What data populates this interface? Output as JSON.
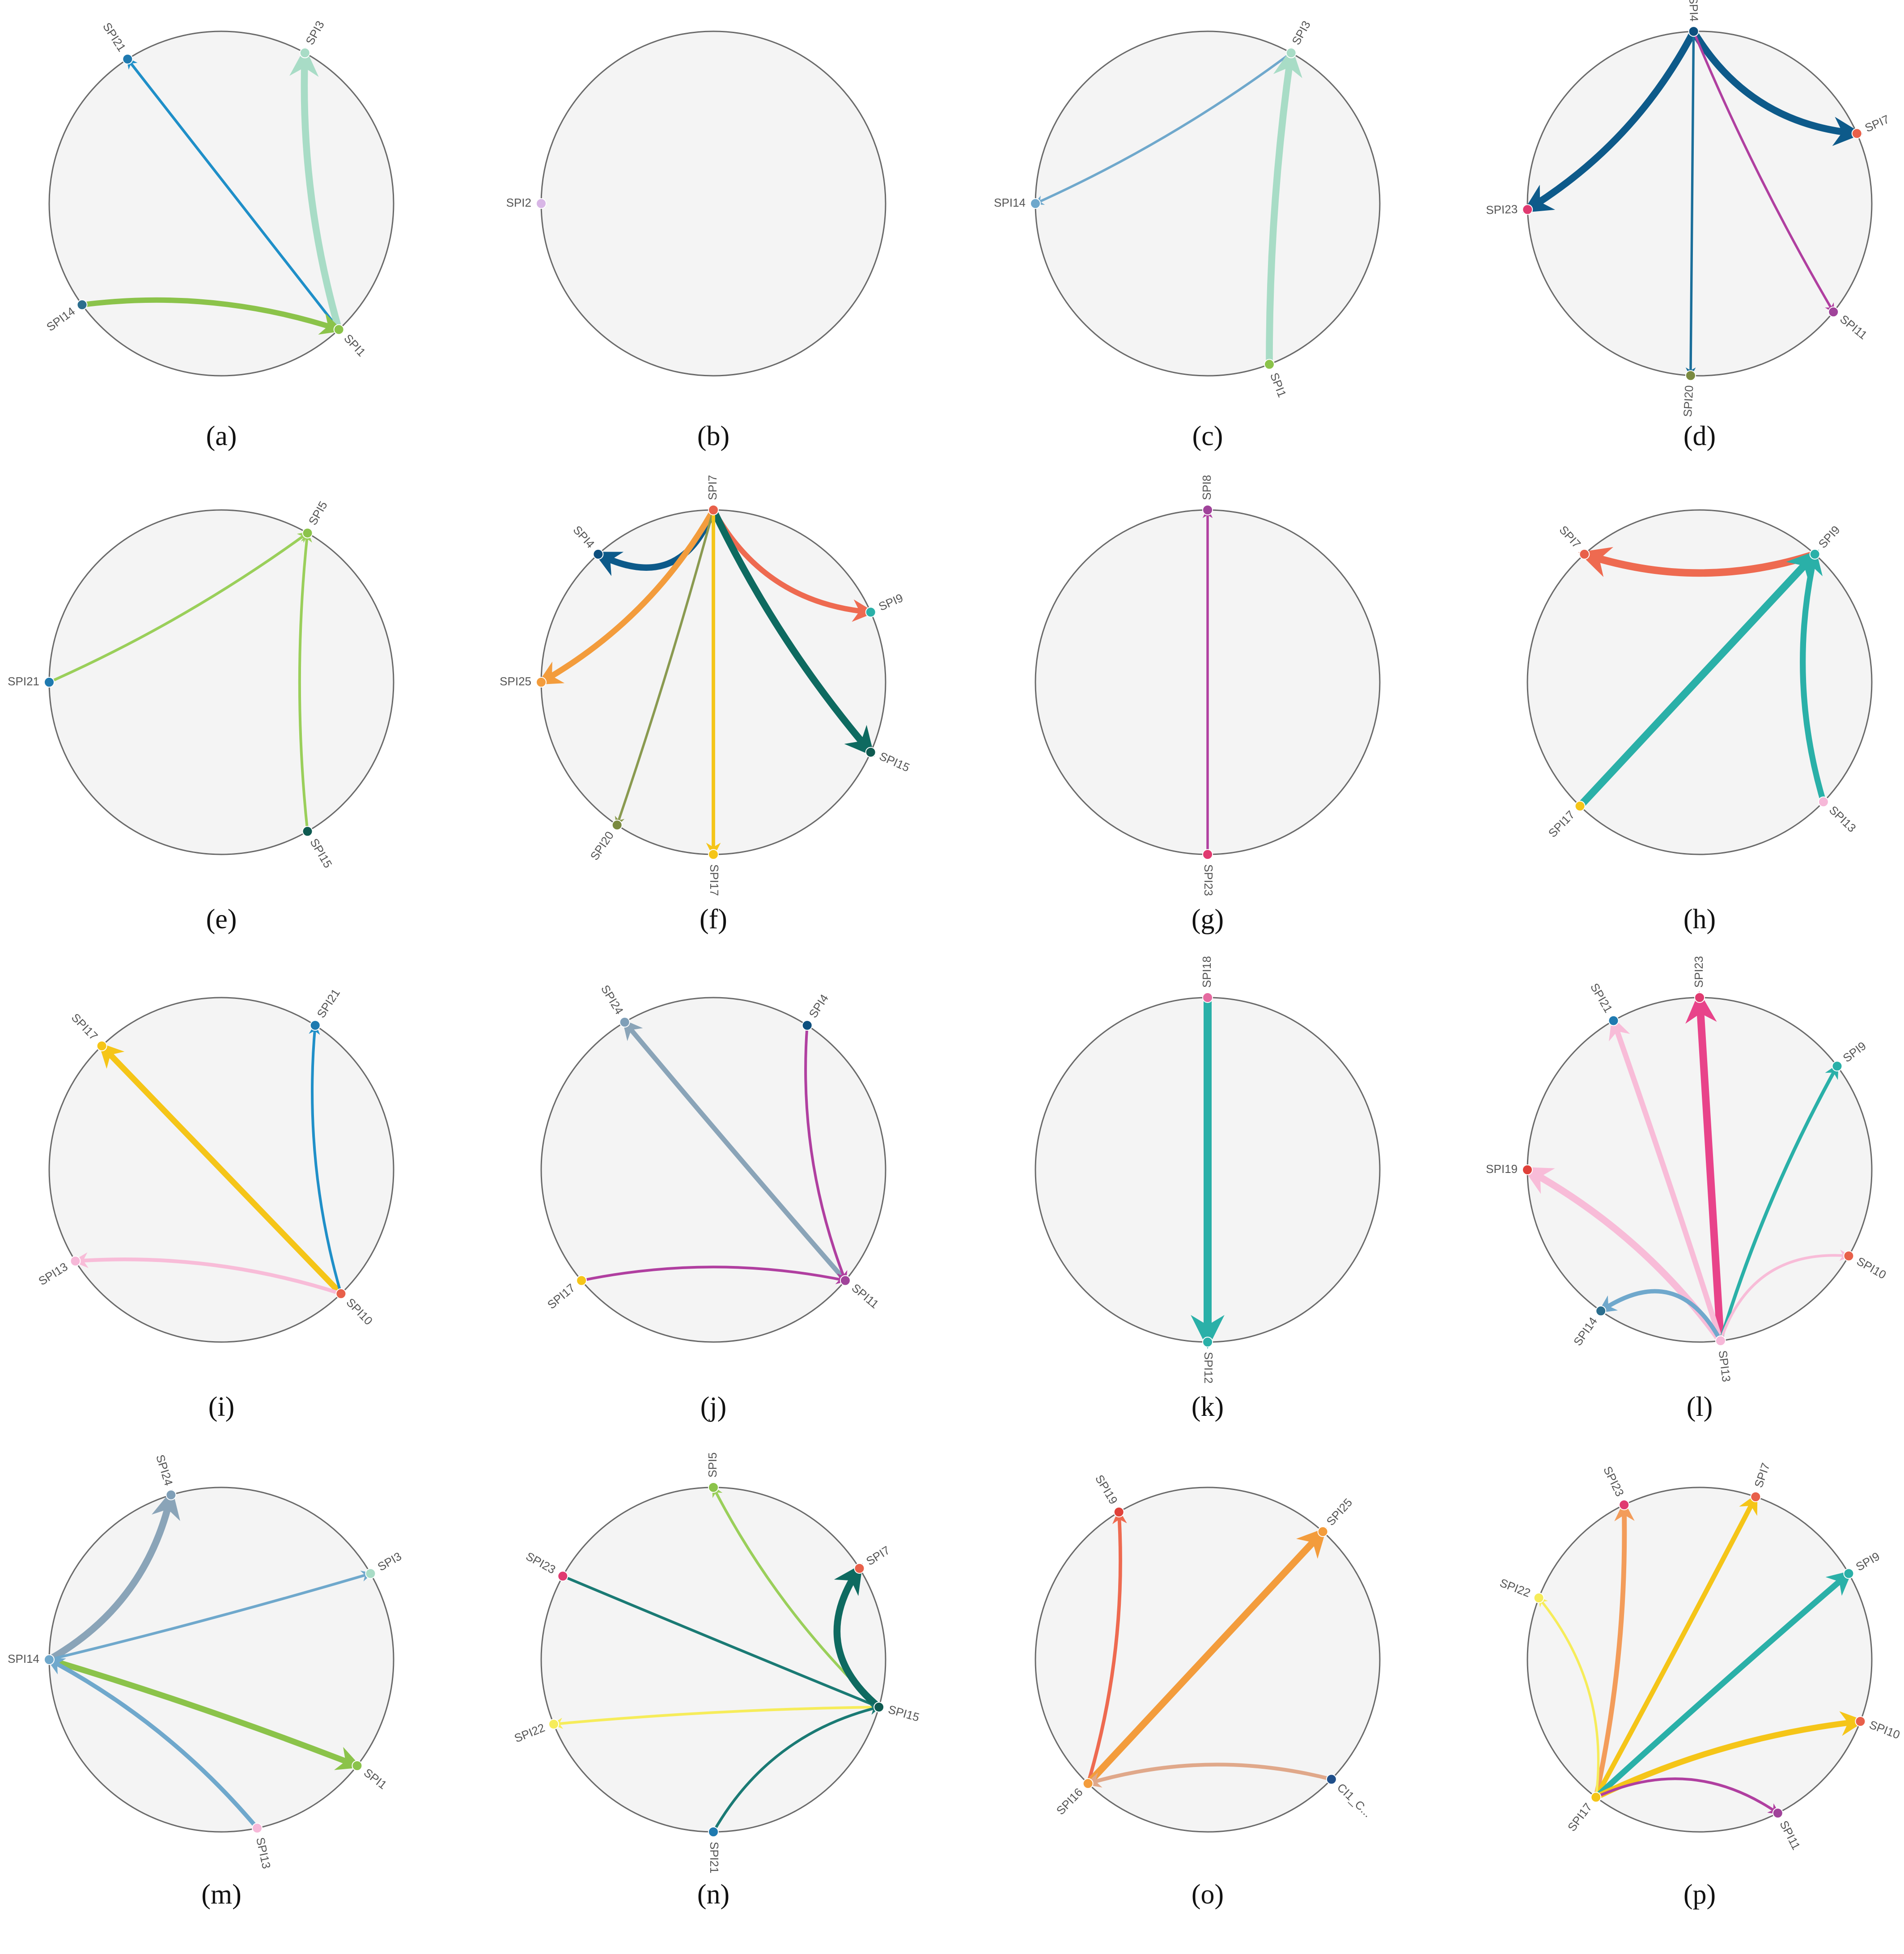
{
  "figure": {
    "panels": [
      {
        "caption": "(a)",
        "nodes": [
          {
            "id": "SPI21",
            "angle": 123,
            "color": "#1f7ab0"
          },
          {
            "id": "SPI3",
            "angle": 61,
            "color": "#a8dcc6"
          },
          {
            "id": "SPI14",
            "angle": 216,
            "color": "#2b6e8e"
          },
          {
            "id": "SPI1",
            "angle": 313,
            "color": "#8bc34a"
          }
        ],
        "edges": [
          {
            "from": "SPI1",
            "to": "SPI21",
            "weight": 1.0,
            "color": "#1f8fc8"
          },
          {
            "from": "SPI1",
            "to": "SPI3",
            "weight": 2.6,
            "color": "#a8dcc6"
          },
          {
            "from": "SPI14",
            "to": "SPI1",
            "weight": 2.0,
            "color": "#8bc34a"
          }
        ]
      },
      {
        "caption": "(b)",
        "nodes": [
          {
            "id": "SPI2",
            "angle": 180,
            "color": "#d8b6e6"
          }
        ],
        "edges": []
      },
      {
        "caption": "(c)",
        "nodes": [
          {
            "id": "SPI3",
            "angle": 61,
            "color": "#a8dcc6"
          },
          {
            "id": "SPI14",
            "angle": 180,
            "color": "#6fa8cc"
          },
          {
            "id": "SPI1",
            "angle": 291,
            "color": "#8bc34a"
          }
        ],
        "edges": [
          {
            "from": "SPI3",
            "to": "SPI14",
            "weight": 0.9,
            "color": "#6fa8cc"
          },
          {
            "from": "SPI1",
            "to": "SPI3",
            "weight": 2.6,
            "color": "#a8dcc6"
          }
        ]
      },
      {
        "caption": "(d)",
        "nodes": [
          {
            "id": "SPI4",
            "angle": 92,
            "color": "#0d4f7e"
          },
          {
            "id": "SPI7",
            "angle": 24,
            "color": "#e8604a"
          },
          {
            "id": "SPI23",
            "angle": 182,
            "color": "#e03a70"
          },
          {
            "id": "SPI11",
            "angle": 321,
            "color": "#a0439a"
          },
          {
            "id": "SPI20",
            "angle": 267,
            "color": "#7a8a40"
          }
        ],
        "edges": [
          {
            "from": "SPI4",
            "to": "SPI7",
            "weight": 2.6,
            "color": "#0d5a8a"
          },
          {
            "from": "SPI4",
            "to": "SPI23",
            "weight": 2.6,
            "color": "#0d5a8a"
          },
          {
            "from": "SPI4",
            "to": "SPI20",
            "weight": 0.9,
            "color": "#1a6e9a"
          },
          {
            "from": "SPI4",
            "to": "SPI11",
            "weight": 0.9,
            "color": "#b03fa0"
          }
        ]
      },
      {
        "caption": "(e)",
        "nodes": [
          {
            "id": "SPI5",
            "angle": 60,
            "color": "#8bc34a"
          },
          {
            "id": "SPI21",
            "angle": 180,
            "color": "#1f7ab0"
          },
          {
            "id": "SPI15",
            "angle": 300,
            "color": "#0e5a50"
          }
        ],
        "edges": [
          {
            "from": "SPI21",
            "to": "SPI5",
            "weight": 1.0,
            "color": "#9acf5a"
          },
          {
            "from": "SPI15",
            "to": "SPI5",
            "weight": 1.0,
            "color": "#9acf5a"
          }
        ]
      },
      {
        "caption": "(f)",
        "nodes": [
          {
            "id": "SPI7",
            "angle": 90,
            "color": "#e8604a"
          },
          {
            "id": "SPI4",
            "angle": 132,
            "color": "#0d4f7e"
          },
          {
            "id": "SPI9",
            "angle": 24,
            "color": "#2ab0a8"
          },
          {
            "id": "SPI25",
            "angle": 180,
            "color": "#f39c3c"
          },
          {
            "id": "SPI15",
            "angle": 336,
            "color": "#0e5a50"
          },
          {
            "id": "SPI20",
            "angle": 236,
            "color": "#7a8a40"
          },
          {
            "id": "SPI17",
            "angle": 270,
            "color": "#f5c518"
          }
        ],
        "edges": [
          {
            "from": "SPI7",
            "to": "SPI4",
            "weight": 2.4,
            "color": "#0d5a8a"
          },
          {
            "from": "SPI7",
            "to": "SPI9",
            "weight": 2.0,
            "color": "#ee6a50"
          },
          {
            "from": "SPI7",
            "to": "SPI25",
            "weight": 2.2,
            "color": "#f39c3c"
          },
          {
            "from": "SPI7",
            "to": "SPI15",
            "weight": 2.6,
            "color": "#0e6a60"
          },
          {
            "from": "SPI7",
            "to": "SPI20",
            "weight": 0.9,
            "color": "#8a9a50"
          },
          {
            "from": "SPI7",
            "to": "SPI17",
            "weight": 1.3,
            "color": "#f5c518"
          }
        ]
      },
      {
        "caption": "(g)",
        "nodes": [
          {
            "id": "SPI8",
            "angle": 90,
            "color": "#a0439a"
          },
          {
            "id": "SPI23",
            "angle": 270,
            "color": "#e03a70"
          }
        ],
        "edges": [
          {
            "from": "SPI23",
            "to": "SPI8",
            "weight": 0.9,
            "color": "#b03fa0"
          }
        ]
      },
      {
        "caption": "(h)",
        "nodes": [
          {
            "id": "SPI7",
            "angle": 132,
            "color": "#e8604a"
          },
          {
            "id": "SPI9",
            "angle": 48,
            "color": "#2ab0a8"
          },
          {
            "id": "SPI17",
            "angle": 226,
            "color": "#f5c518"
          },
          {
            "id": "SPI13",
            "angle": 316,
            "color": "#f6b8d8"
          }
        ],
        "edges": [
          {
            "from": "SPI9",
            "to": "SPI7",
            "weight": 2.8,
            "color": "#ee6a50"
          },
          {
            "from": "SPI17",
            "to": "SPI9",
            "weight": 2.8,
            "color": "#2ab0a8"
          },
          {
            "from": "SPI13",
            "to": "SPI9",
            "weight": 2.2,
            "color": "#2ab0a8"
          }
        ]
      },
      {
        "caption": "(i)",
        "nodes": [
          {
            "id": "SPI17",
            "angle": 134,
            "color": "#f5c518"
          },
          {
            "id": "SPI21",
            "angle": 57,
            "color": "#1f7ab0"
          },
          {
            "id": "SPI13",
            "angle": 212,
            "color": "#f6b8d8"
          },
          {
            "id": "SPI10",
            "angle": 314,
            "color": "#e8604a"
          }
        ],
        "edges": [
          {
            "from": "SPI10",
            "to": "SPI17",
            "weight": 2.2,
            "color": "#f5c518"
          },
          {
            "from": "SPI10",
            "to": "SPI21",
            "weight": 1.0,
            "color": "#1f8fc8"
          },
          {
            "from": "SPI10",
            "to": "SPI13",
            "weight": 1.4,
            "color": "#f8bcd8"
          }
        ]
      },
      {
        "caption": "(j)",
        "nodes": [
          {
            "id": "SPI24",
            "angle": 121,
            "color": "#7f9fb8"
          },
          {
            "id": "SPI4",
            "angle": 57,
            "color": "#0d4f7e"
          },
          {
            "id": "SPI17",
            "angle": 220,
            "color": "#f5c518"
          },
          {
            "id": "SPI11",
            "angle": 320,
            "color": "#a0439a"
          }
        ],
        "edges": [
          {
            "from": "SPI11",
            "to": "SPI24",
            "weight": 1.8,
            "color": "#8aa4b8"
          },
          {
            "from": "SPI4",
            "to": "SPI11",
            "weight": 1.0,
            "color": "#b03fa0"
          },
          {
            "from": "SPI17",
            "to": "SPI11",
            "weight": 1.0,
            "color": "#b03fa0"
          }
        ]
      },
      {
        "caption": "(k)",
        "nodes": [
          {
            "id": "SPI18",
            "angle": 90,
            "color": "#e56aa0"
          },
          {
            "id": "SPI12",
            "angle": 270,
            "color": "#2ab0a8"
          }
        ],
        "edges": [
          {
            "from": "SPI18",
            "to": "SPI12",
            "weight": 3.0,
            "color": "#2ab0a8"
          }
        ]
      },
      {
        "caption": "(l)",
        "nodes": [
          {
            "id": "SPI23",
            "angle": 90,
            "color": "#e03a70"
          },
          {
            "id": "SPI21",
            "angle": 120,
            "color": "#1f7ab0"
          },
          {
            "id": "SPI9",
            "angle": 37,
            "color": "#2ab0a8"
          },
          {
            "id": "SPI19",
            "angle": 180,
            "color": "#e0413a"
          },
          {
            "id": "SPI10",
            "angle": 330,
            "color": "#e8604a"
          },
          {
            "id": "SPI14",
            "angle": 235,
            "color": "#2b6e8e"
          },
          {
            "id": "SPI13",
            "angle": 277,
            "color": "#f6b8d8"
          }
        ],
        "edges": [
          {
            "from": "SPI13",
            "to": "SPI23",
            "weight": 2.8,
            "color": "#e8438a"
          },
          {
            "from": "SPI13",
            "to": "SPI21",
            "weight": 2.0,
            "color": "#f8bcd8"
          },
          {
            "from": "SPI13",
            "to": "SPI19",
            "weight": 2.6,
            "color": "#f8bcd8"
          },
          {
            "from": "SPI13",
            "to": "SPI9",
            "weight": 1.3,
            "color": "#2ab0a8"
          },
          {
            "from": "SPI13",
            "to": "SPI10",
            "weight": 1.0,
            "color": "#f8bcd8"
          },
          {
            "from": "SPI13",
            "to": "SPI14",
            "weight": 1.6,
            "color": "#6fa8cc"
          }
        ]
      },
      {
        "caption": "(m)",
        "nodes": [
          {
            "id": "SPI24",
            "angle": 107,
            "color": "#7f9fb8"
          },
          {
            "id": "SPI3",
            "angle": 30,
            "color": "#a8dcc6"
          },
          {
            "id": "SPI14",
            "angle": 180,
            "color": "#6fa8cc"
          },
          {
            "id": "SPI1",
            "angle": 322,
            "color": "#8bc34a"
          },
          {
            "id": "SPI13",
            "angle": 282,
            "color": "#f6b8d8"
          }
        ],
        "edges": [
          {
            "from": "SPI14",
            "to": "SPI24",
            "weight": 2.6,
            "color": "#8aa4b8"
          },
          {
            "from": "SPI14",
            "to": "SPI3",
            "weight": 1.0,
            "color": "#6fa8cc"
          },
          {
            "from": "SPI14",
            "to": "SPI1",
            "weight": 2.2,
            "color": "#8bc34a"
          },
          {
            "from": "SPI13",
            "to": "SPI14",
            "weight": 1.6,
            "color": "#6fa8cc"
          }
        ]
      },
      {
        "caption": "(n)",
        "nodes": [
          {
            "id": "SPI5",
            "angle": 90,
            "color": "#8bc34a"
          },
          {
            "id": "SPI23",
            "angle": 151,
            "color": "#e03a70"
          },
          {
            "id": "SPI7",
            "angle": 32,
            "color": "#e8604a"
          },
          {
            "id": "SPI22",
            "angle": 202,
            "color": "#f6ec5a"
          },
          {
            "id": "SPI15",
            "angle": 344,
            "color": "#0e5a50"
          },
          {
            "id": "SPI21",
            "angle": 270,
            "color": "#1f7ab0"
          }
        ],
        "edges": [
          {
            "from": "SPI15",
            "to": "SPI5",
            "weight": 1.0,
            "color": "#9acf5a"
          },
          {
            "from": "SPI23",
            "to": "SPI15",
            "weight": 1.0,
            "color": "#1a7a74"
          },
          {
            "from": "SPI15",
            "to": "SPI7",
            "weight": 2.6,
            "color": "#0e6a60"
          },
          {
            "from": "SPI15",
            "to": "SPI22",
            "weight": 1.0,
            "color": "#f6ec5a"
          },
          {
            "from": "SPI21",
            "to": "SPI15",
            "weight": 1.0,
            "color": "#1a7a74"
          }
        ]
      },
      {
        "caption": "(o)",
        "nodes": [
          {
            "id": "SPI19",
            "angle": 121,
            "color": "#e0413a"
          },
          {
            "id": "SPI25",
            "angle": 48,
            "color": "#f39c3c"
          },
          {
            "id": "SPI16",
            "angle": 226,
            "color": "#f39c3c"
          },
          {
            "id": "CI1_C...",
            "angle": 316,
            "color": "#1f4f8a"
          }
        ],
        "edges": [
          {
            "from": "SPI16",
            "to": "SPI19",
            "weight": 1.3,
            "color": "#ee6a50"
          },
          {
            "from": "SPI16",
            "to": "SPI25",
            "weight": 2.6,
            "color": "#f39c3c"
          },
          {
            "from": "CI1_C...",
            "to": "SPI16",
            "weight": 1.4,
            "color": "#e0a88a"
          }
        ]
      },
      {
        "caption": "(p)",
        "nodes": [
          {
            "id": "SPI23",
            "angle": 116,
            "color": "#e03a70"
          },
          {
            "id": "SPI7",
            "angle": 71,
            "color": "#e8604a"
          },
          {
            "id": "SPI9",
            "angle": 30,
            "color": "#2ab0a8"
          },
          {
            "id": "SPI22",
            "angle": 159,
            "color": "#f6ec5a"
          },
          {
            "id": "SPI10",
            "angle": 339,
            "color": "#e8604a"
          },
          {
            "id": "SPI17",
            "angle": 233,
            "color": "#f5c518"
          },
          {
            "id": "SPI11",
            "angle": 297,
            "color": "#a0439a"
          }
        ],
        "edges": [
          {
            "from": "SPI17",
            "to": "SPI23",
            "weight": 1.8,
            "color": "#f39c5a"
          },
          {
            "from": "SPI17",
            "to": "SPI7",
            "weight": 1.8,
            "color": "#f5c518"
          },
          {
            "from": "SPI17",
            "to": "SPI9",
            "weight": 2.2,
            "color": "#2ab0a8"
          },
          {
            "from": "SPI17",
            "to": "SPI22",
            "weight": 0.9,
            "color": "#f6ec5a"
          },
          {
            "from": "SPI17",
            "to": "SPI10",
            "weight": 2.2,
            "color": "#f5c518"
          },
          {
            "from": "SPI17",
            "to": "SPI11",
            "weight": 1.0,
            "color": "#b03fa0"
          }
        ]
      }
    ]
  }
}
